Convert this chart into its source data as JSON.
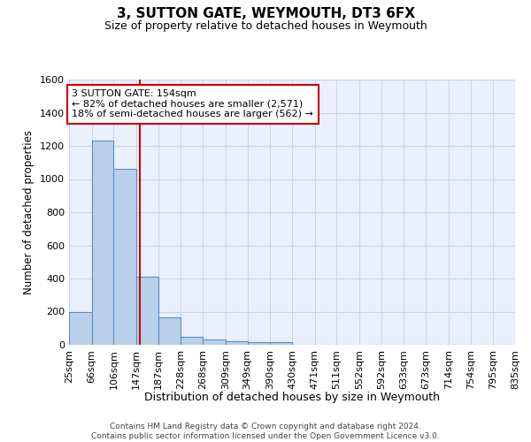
{
  "title": "3, SUTTON GATE, WEYMOUTH, DT3 6FX",
  "subtitle": "Size of property relative to detached houses in Weymouth",
  "xlabel": "Distribution of detached houses by size in Weymouth",
  "ylabel": "Number of detached properties",
  "footer_line1": "Contains HM Land Registry data © Crown copyright and database right 2024.",
  "footer_line2": "Contains public sector information licensed under the Open Government Licence v3.0.",
  "bin_edges": [
    25,
    66,
    106,
    147,
    187,
    228,
    268,
    309,
    349,
    390,
    430,
    471,
    511,
    552,
    592,
    633,
    673,
    714,
    754,
    795,
    835
  ],
  "bar_heights": [
    200,
    1230,
    1060,
    410,
    165,
    50,
    30,
    20,
    15,
    15,
    0,
    0,
    0,
    0,
    0,
    0,
    0,
    0,
    0,
    0
  ],
  "bar_color": "#b8d0ea",
  "bar_edge_color": "#5b8cc8",
  "grid_color": "#c8d4ee",
  "background_color": "#eaf0fb",
  "red_line_x": 154,
  "red_line_color": "#cc0000",
  "annotation_line1": "3 SUTTON GATE: 154sqm",
  "annotation_line2": "← 82% of detached houses are smaller (2,571)",
  "annotation_line3": "18% of semi-detached houses are larger (562) →",
  "annotation_box_color": "#ffffff",
  "annotation_border_color": "#cc0000",
  "ylim": [
    0,
    1600
  ],
  "yticks": [
    0,
    200,
    400,
    600,
    800,
    1000,
    1200,
    1400,
    1600
  ]
}
